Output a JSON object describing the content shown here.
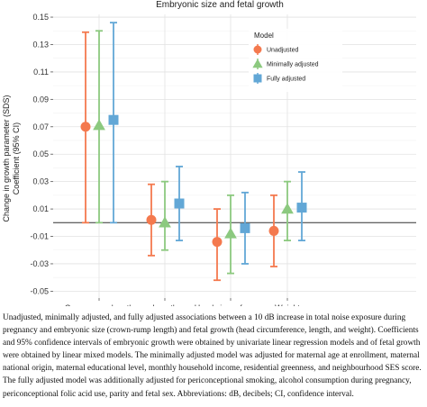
{
  "chart_data": {
    "type": "scatter",
    "title": "Embryonic size and fetal growth",
    "ylabel_line1": "Change in growth parameter (SDS)",
    "ylabel_line2": "Coefficient (95% CI)",
    "xlabel": "",
    "categories": [
      "Crown-rump length",
      "Length",
      "Head circumference",
      "Weight"
    ],
    "yticks": [
      "-0.05",
      "-0.03",
      "-0.01",
      "0.01",
      "0.03",
      "0.05",
      "0.07",
      "0.09",
      "0.11",
      "0.13",
      "0.15"
    ],
    "ylim": [
      -0.055,
      0.152
    ],
    "reference_line": 0,
    "grid": true,
    "legend": {
      "title": "Model",
      "placement": "top-right",
      "entries": [
        "Unadjusted",
        "Minimally adjusted",
        "Fully adjusted"
      ]
    },
    "series": [
      {
        "name": "Unadjusted",
        "marker": "circle",
        "color": "#F4794E",
        "estimates": [
          0.07,
          0.002,
          -0.014,
          -0.006
        ],
        "lower": [
          0.0,
          -0.024,
          -0.042,
          -0.032
        ],
        "upper": [
          0.139,
          0.028,
          0.01,
          0.02
        ]
      },
      {
        "name": "Minimally adjusted",
        "marker": "triangle",
        "color": "#8CC97F",
        "estimates": [
          0.071,
          0.0,
          -0.008,
          0.01
        ],
        "lower": [
          0.0,
          -0.02,
          -0.037,
          -0.013
        ],
        "upper": [
          0.14,
          0.03,
          0.02,
          0.03
        ]
      },
      {
        "name": "Fully adjusted",
        "marker": "square",
        "color": "#62A7D6",
        "estimates": [
          0.075,
          0.014,
          -0.004,
          0.011
        ],
        "lower": [
          0.0,
          -0.013,
          -0.03,
          -0.013
        ],
        "upper": [
          0.146,
          0.041,
          0.022,
          0.037
        ]
      }
    ]
  },
  "caption": "Unadjusted, minimally adjusted, and fully adjusted associations between a 10 dB increase in total noise exposure during pregnancy and embryonic size (crown-rump length) and fetal growth (head circumference, length, and weight). Coefficients and 95% confidence intervals of embryonic growth were obtained by univariate linear regression models and of fetal growth were obtained by linear mixed models. The minimally adjusted model was adjusted for maternal age at enrollment, maternal national origin, maternal educational level, monthly household income, residential greenness, and neighbourhood SES score. The fully adjusted model was additionally adjusted for periconceptional smoking, alcohol consumption during pregnancy, periconceptional folic acid use, parity and fetal sex. Abbreviations: dB, decibels; CI, confidence interval."
}
